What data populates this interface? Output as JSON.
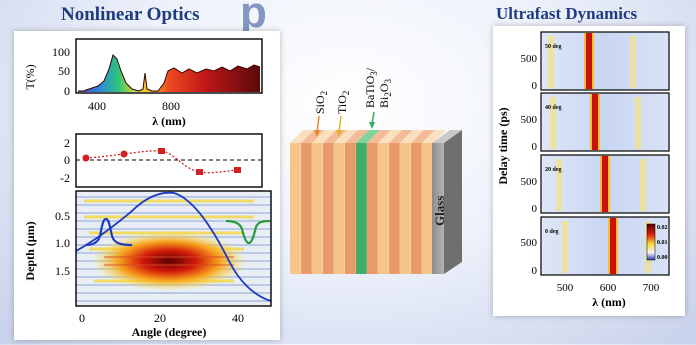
{
  "headings": {
    "left": "Nonlinear Optics",
    "right": "Ultrafast Dynamics",
    "top_partial": "p"
  },
  "transmission_plot": {
    "ylabel": "T(%)",
    "yticks": [
      "0",
      "50",
      "100"
    ],
    "xticks": [
      "400",
      "800"
    ],
    "xlabel": "λ (nm)"
  },
  "angle_plot": {
    "yticks": [
      "2",
      "0",
      "-2"
    ],
    "depth_label": "Depth (μm)",
    "depth_ticks": [
      "0.5",
      "1.0",
      "1.5"
    ],
    "xticks": [
      "0",
      "20",
      "40"
    ],
    "xlabel": "Angle (degree)"
  },
  "stack": {
    "labels": [
      "SiO2",
      "TiO2",
      "BaTiO3/ Bi2O3",
      "Glass"
    ]
  },
  "dynamics_plot": {
    "ylabel": "Delay time (ps)",
    "panel_labels": [
      "50 deg",
      "40 deg",
      "20 deg",
      "0 deg"
    ],
    "yticks": [
      "0",
      "500"
    ],
    "xticks": [
      "500",
      "600",
      "700"
    ],
    "xlabel": "λ (nm)",
    "colorbar_ticks": [
      "0.02",
      "0.01",
      "0.00"
    ]
  },
  "colors": {
    "heading": "#1f3b80",
    "layer_light": "#f6c58c",
    "layer_dark": "#e89a6a",
    "layer_green": "#3fae6a",
    "glass": "#9a9a9a"
  }
}
